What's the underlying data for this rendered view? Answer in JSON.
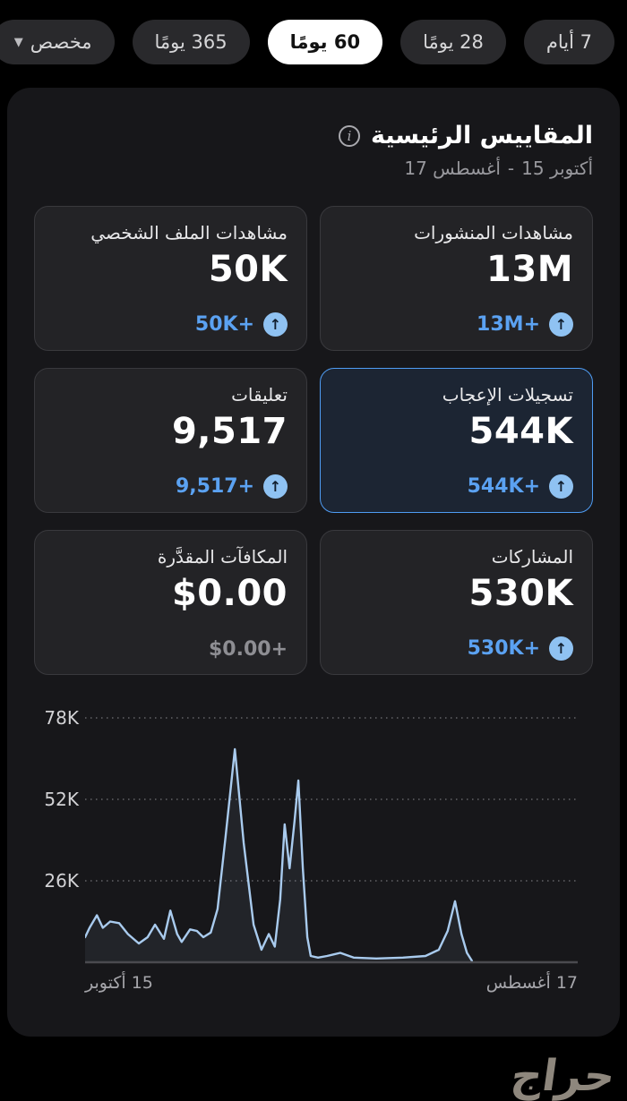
{
  "tabs": {
    "items": [
      {
        "label": "7 أيام",
        "active": false,
        "caret": false
      },
      {
        "label": "28 يومًا",
        "active": false,
        "caret": false
      },
      {
        "label": "60 يومًا",
        "active": true,
        "caret": false
      },
      {
        "label": "365 يومًا",
        "active": false,
        "caret": false
      },
      {
        "label": "مخصص",
        "active": false,
        "caret": true
      }
    ]
  },
  "header": {
    "title": "المقاييس الرئيسية",
    "info_icon": "info-icon",
    "date_range": {
      "start": "17 أغسطس",
      "separator": "-",
      "end": "15 أكتوبر"
    }
  },
  "metrics": {
    "cards": [
      {
        "label": "مشاهدات المنشورات",
        "value": "13M",
        "delta": "+13M",
        "highlighted": false,
        "has_arrow": true
      },
      {
        "label": "مشاهدات الملف الشخصي",
        "value": "50K",
        "delta": "+50K",
        "highlighted": false,
        "has_arrow": true
      },
      {
        "label": "تسجيلات الإعجاب",
        "value": "544K",
        "delta": "+544K",
        "highlighted": true,
        "has_arrow": true
      },
      {
        "label": "تعليقات",
        "value": "9,517",
        "delta": "+9,517",
        "highlighted": false,
        "has_arrow": true
      },
      {
        "label": "المشاركات",
        "value": "530K",
        "delta": "+530K",
        "highlighted": false,
        "has_arrow": true
      },
      {
        "label": "المكافآت المقدَّرة",
        "value": "$0.00",
        "delta": "+$0.00",
        "highlighted": false,
        "has_arrow": false
      }
    ]
  },
  "chart_data": {
    "type": "area",
    "title": "",
    "xlabel": "",
    "ylabel": "",
    "unit": "K",
    "ylim": [
      0,
      81
    ],
    "grid": "dotted-horizontal",
    "y_ticks": [
      "78K",
      "52K",
      "26K"
    ],
    "y_tick_values": [
      78,
      52,
      26
    ],
    "x_axis": {
      "left_label": "15 أكتوبر",
      "right_label": "17 أغسطس",
      "note": "time runs right-to-left: Aug 17 at right, Oct 15 at left"
    },
    "points_format": "[x_percent_from_left, value_in_thousands]",
    "points": [
      [
        0,
        8
      ],
      [
        0.9,
        11
      ],
      [
        2.4,
        15
      ],
      [
        3.6,
        11
      ],
      [
        5.1,
        13
      ],
      [
        6.9,
        12.5
      ],
      [
        8.7,
        9
      ],
      [
        10.9,
        6
      ],
      [
        12.7,
        8
      ],
      [
        14.2,
        12
      ],
      [
        16,
        7.5
      ],
      [
        17.3,
        16.5
      ],
      [
        18.7,
        9
      ],
      [
        19.6,
        6.5
      ],
      [
        21.3,
        10.5
      ],
      [
        22.7,
        10
      ],
      [
        24,
        8
      ],
      [
        25.5,
        9.5
      ],
      [
        26.9,
        17
      ],
      [
        28.5,
        40
      ],
      [
        30.4,
        68
      ],
      [
        32.2,
        38
      ],
      [
        34.2,
        12
      ],
      [
        35.8,
        4
      ],
      [
        37.3,
        9
      ],
      [
        38.5,
        5
      ],
      [
        39.6,
        20
      ],
      [
        40.5,
        44
      ],
      [
        41.5,
        30
      ],
      [
        42.5,
        45
      ],
      [
        43.3,
        58
      ],
      [
        44.2,
        30
      ],
      [
        45.1,
        8
      ],
      [
        45.8,
        2
      ],
      [
        47.3,
        1.5
      ],
      [
        49.1,
        2
      ],
      [
        51.8,
        3
      ],
      [
        54.5,
        1.5
      ],
      [
        59.1,
        1.2
      ],
      [
        64.5,
        1.5
      ],
      [
        69.1,
        2
      ],
      [
        71.8,
        4
      ],
      [
        73.6,
        10
      ],
      [
        75.1,
        19.5
      ],
      [
        76.4,
        9
      ],
      [
        77.5,
        3
      ],
      [
        78.5,
        0.5
      ]
    ]
  },
  "watermark": "حراج",
  "colors": {
    "page_bg": "#000000",
    "panel_bg": "#17171a",
    "card_bg": "#232326",
    "highlight_border": "#4f9cf3",
    "accent_blue": "#5ba2f2",
    "icon_circle": "#8fc2f2",
    "chart_line": "#a9cbee",
    "active_pill": "#ffffff"
  }
}
